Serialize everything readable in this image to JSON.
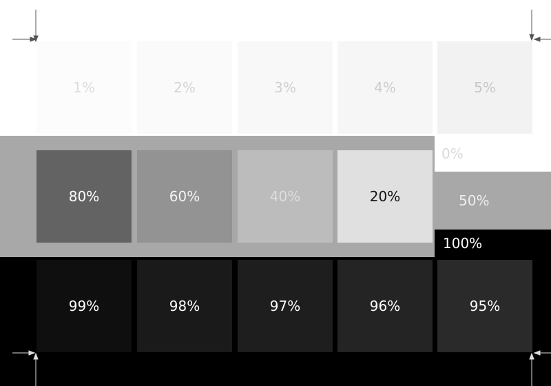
{
  "swatches": {
    "top_row": [
      "1%",
      "2%",
      "3%",
      "4%",
      "5%"
    ],
    "middle_row": [
      "80%",
      "60%",
      "40%",
      "20%"
    ],
    "bottom_row": [
      "99%",
      "98%",
      "97%",
      "96%",
      "95%"
    ]
  },
  "side_patches": {
    "white": "0%",
    "gray": "50%",
    "black": "100%"
  },
  "colors": {
    "mid_band": "#a8a8a8",
    "bottom_band": "#000000"
  }
}
